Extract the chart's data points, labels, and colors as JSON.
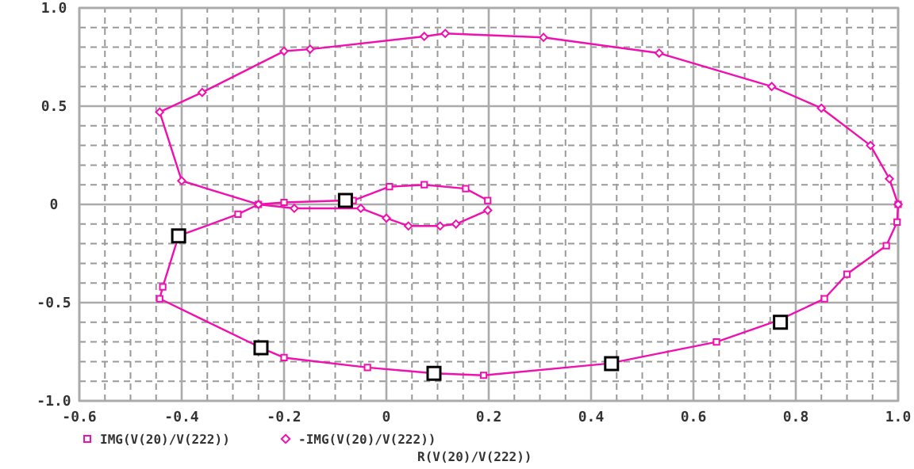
{
  "chart_data": {
    "type": "line",
    "xlabel": "R(V(20)/V(222))",
    "xlim": [
      -0.6,
      1.0
    ],
    "ylim": [
      -1.0,
      1.0
    ],
    "xticks": [
      {
        "value": -0.6,
        "label": "-0.6"
      },
      {
        "value": -0.4,
        "label": "-0.4"
      },
      {
        "value": -0.2,
        "label": "-0.2"
      },
      0,
      {
        "value": 0.2,
        "label": "0.2"
      },
      {
        "value": 0.4,
        "label": "0.4"
      },
      {
        "value": 0.6,
        "label": "0.6"
      },
      {
        "value": 0.8,
        "label": "0.8"
      },
      {
        "value": 1.0,
        "label": "1.0"
      }
    ],
    "yticks": [
      {
        "value": -1.0,
        "label": "-1.0"
      },
      {
        "value": -0.5,
        "label": "-0.5"
      },
      0,
      {
        "value": 0.5,
        "label": "0.5"
      },
      {
        "value": 1.0,
        "label": "1.0"
      }
    ],
    "grid": true,
    "legend": "bottom",
    "series": [
      {
        "name": "IMG(V(20)/V(222))",
        "color": "#f010b0",
        "marker": "square",
        "x": [
          1.0,
          0.998,
          0.977,
          0.9,
          0.856,
          0.766,
          0.645,
          0.434,
          0.19,
          0.093,
          -0.037,
          -0.2,
          -0.245,
          -0.443,
          -0.437,
          -0.406,
          -0.29,
          -0.25,
          -0.2,
          -0.08,
          -0.065,
          0.006,
          0.074,
          0.155,
          0.198
        ],
        "values": [
          0,
          -0.09,
          -0.21,
          -0.355,
          -0.48,
          -0.59,
          -0.7,
          -0.81,
          -0.87,
          -0.86,
          -0.83,
          -0.78,
          -0.73,
          -0.48,
          -0.42,
          -0.16,
          -0.05,
          0,
          0.01,
          0.02,
          0.02,
          0.09,
          0.1,
          0.08,
          0.02
        ]
      },
      {
        "name": "-IMG(V(20)/V(222))",
        "color": "#f010b0",
        "marker": "diamond",
        "x": [
          0.198,
          0.136,
          0.105,
          0.043,
          0,
          -0.05,
          -0.18,
          -0.25,
          -0.4,
          -0.443,
          -0.36,
          -0.2,
          -0.149,
          0.074,
          0.115,
          0.307,
          0.533,
          0.753,
          0.85,
          0.946,
          0.983,
          1.0
        ],
        "values": [
          -0.03,
          -0.1,
          -0.11,
          -0.11,
          -0.07,
          -0.02,
          -0.02,
          0,
          0.12,
          0.47,
          0.57,
          0.78,
          0.79,
          0.855,
          0.87,
          0.85,
          0.77,
          0.6,
          0.49,
          0.3,
          0.13,
          0
        ]
      },
      {
        "type": "scatter",
        "color": "#000000",
        "marker": "square",
        "x": [
          -0.406,
          -0.245,
          0.093,
          0.44,
          0.77,
          -0.08
        ],
        "values": [
          -0.16,
          -0.73,
          -0.86,
          -0.81,
          -0.6,
          0.02
        ]
      }
    ]
  }
}
